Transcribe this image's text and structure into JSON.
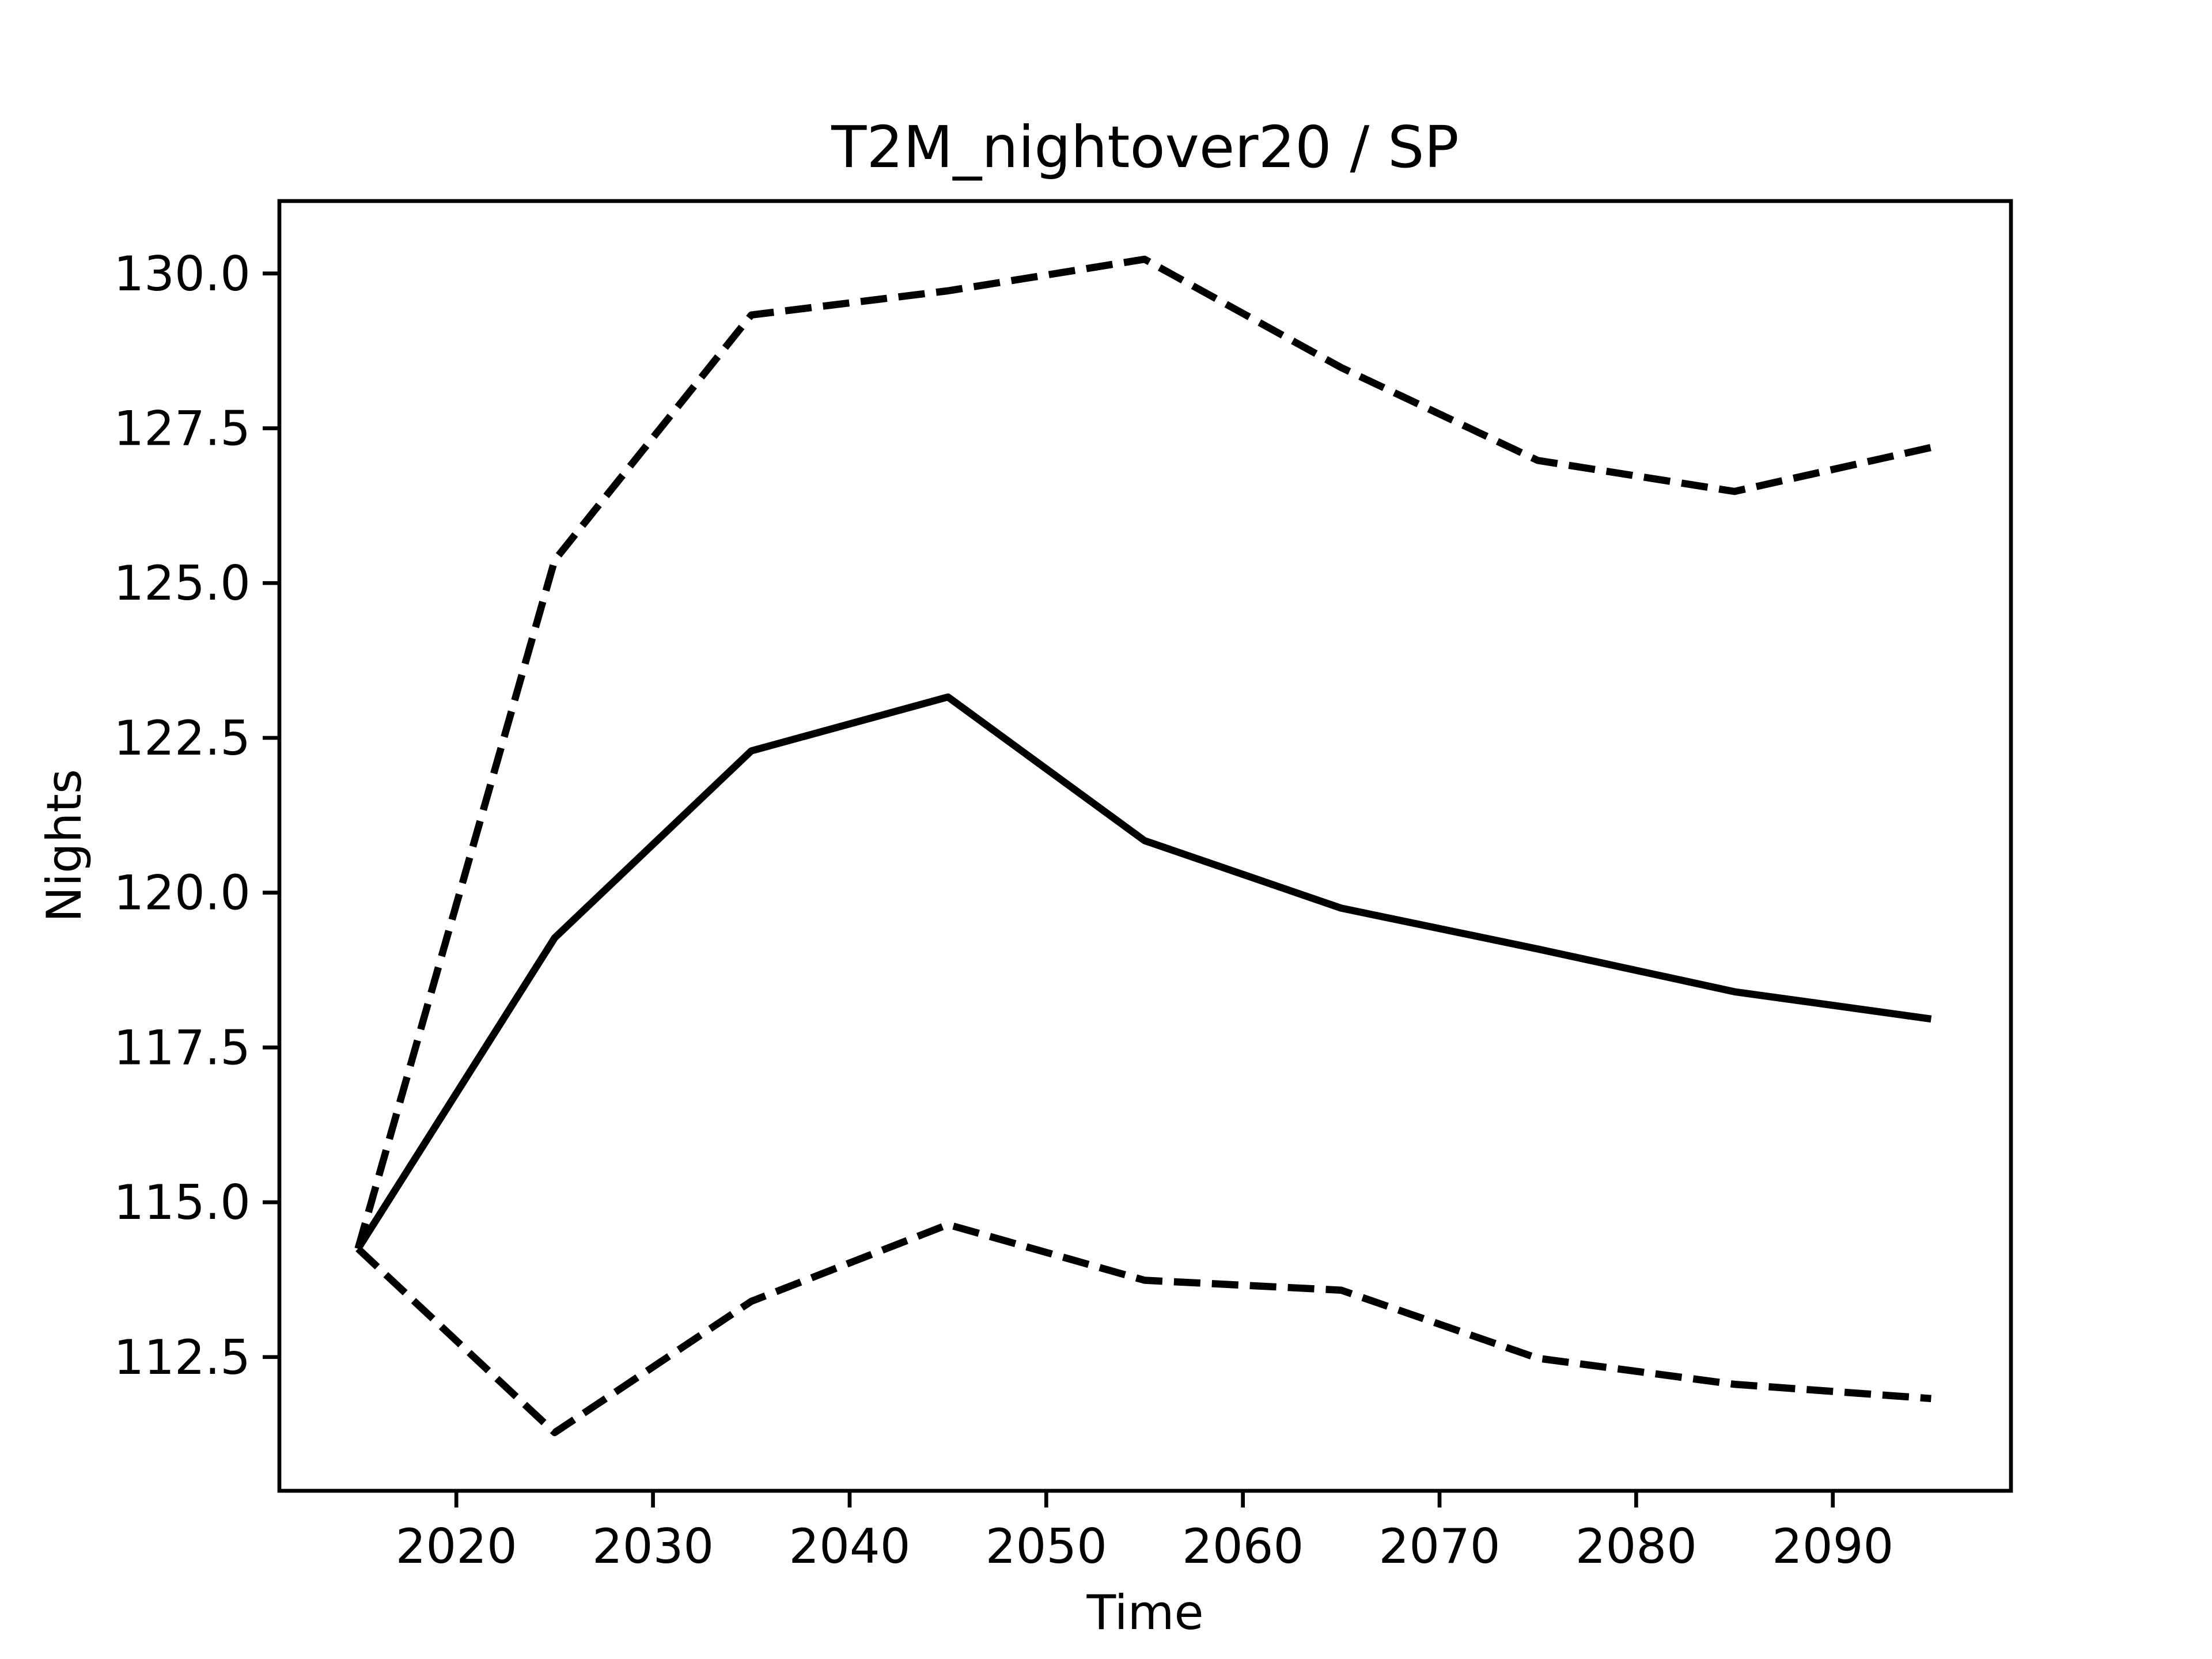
{
  "chart_data": {
    "type": "line",
    "title": "T2M_nightover20 / SP",
    "x_label": "Time",
    "y_label": "Nights",
    "x": [
      2015,
      2025,
      2035,
      2045,
      2055,
      2065,
      2075,
      2085,
      2095
    ],
    "series": [
      {
        "color": "#000000",
        "style": "solid",
        "values": [
          114.25,
          119.27,
          122.29,
          123.16,
          120.84,
          119.75,
          119.09,
          118.4,
          117.96
        ]
      },
      {
        "color": "#000000",
        "style": "dashed",
        "values": [
          114.25,
          125.37,
          129.33,
          129.72,
          130.23,
          128.48,
          126.98,
          126.48,
          127.19
        ]
      },
      {
        "color": "#000000",
        "style": "dashed",
        "values": [
          114.25,
          111.28,
          113.4,
          114.64,
          113.74,
          113.58,
          112.48,
          112.06,
          111.83
        ]
      }
    ],
    "xlim": [
      2011.0,
      2099.06
    ],
    "xticks": [
      2020,
      2030,
      2040,
      2050,
      2060,
      2070,
      2080,
      2090
    ],
    "ylim": [
      110.34,
      131.17
    ],
    "yticks": [
      112.5,
      {
        "value": 115,
        "label": "115.0"
      },
      117.5,
      {
        "value": 120,
        "label": "120.0"
      },
      122.5,
      {
        "value": 125,
        "label": "125.0"
      },
      127.5,
      {
        "value": 130,
        "label": "130.0"
      }
    ],
    "grid": false
  }
}
